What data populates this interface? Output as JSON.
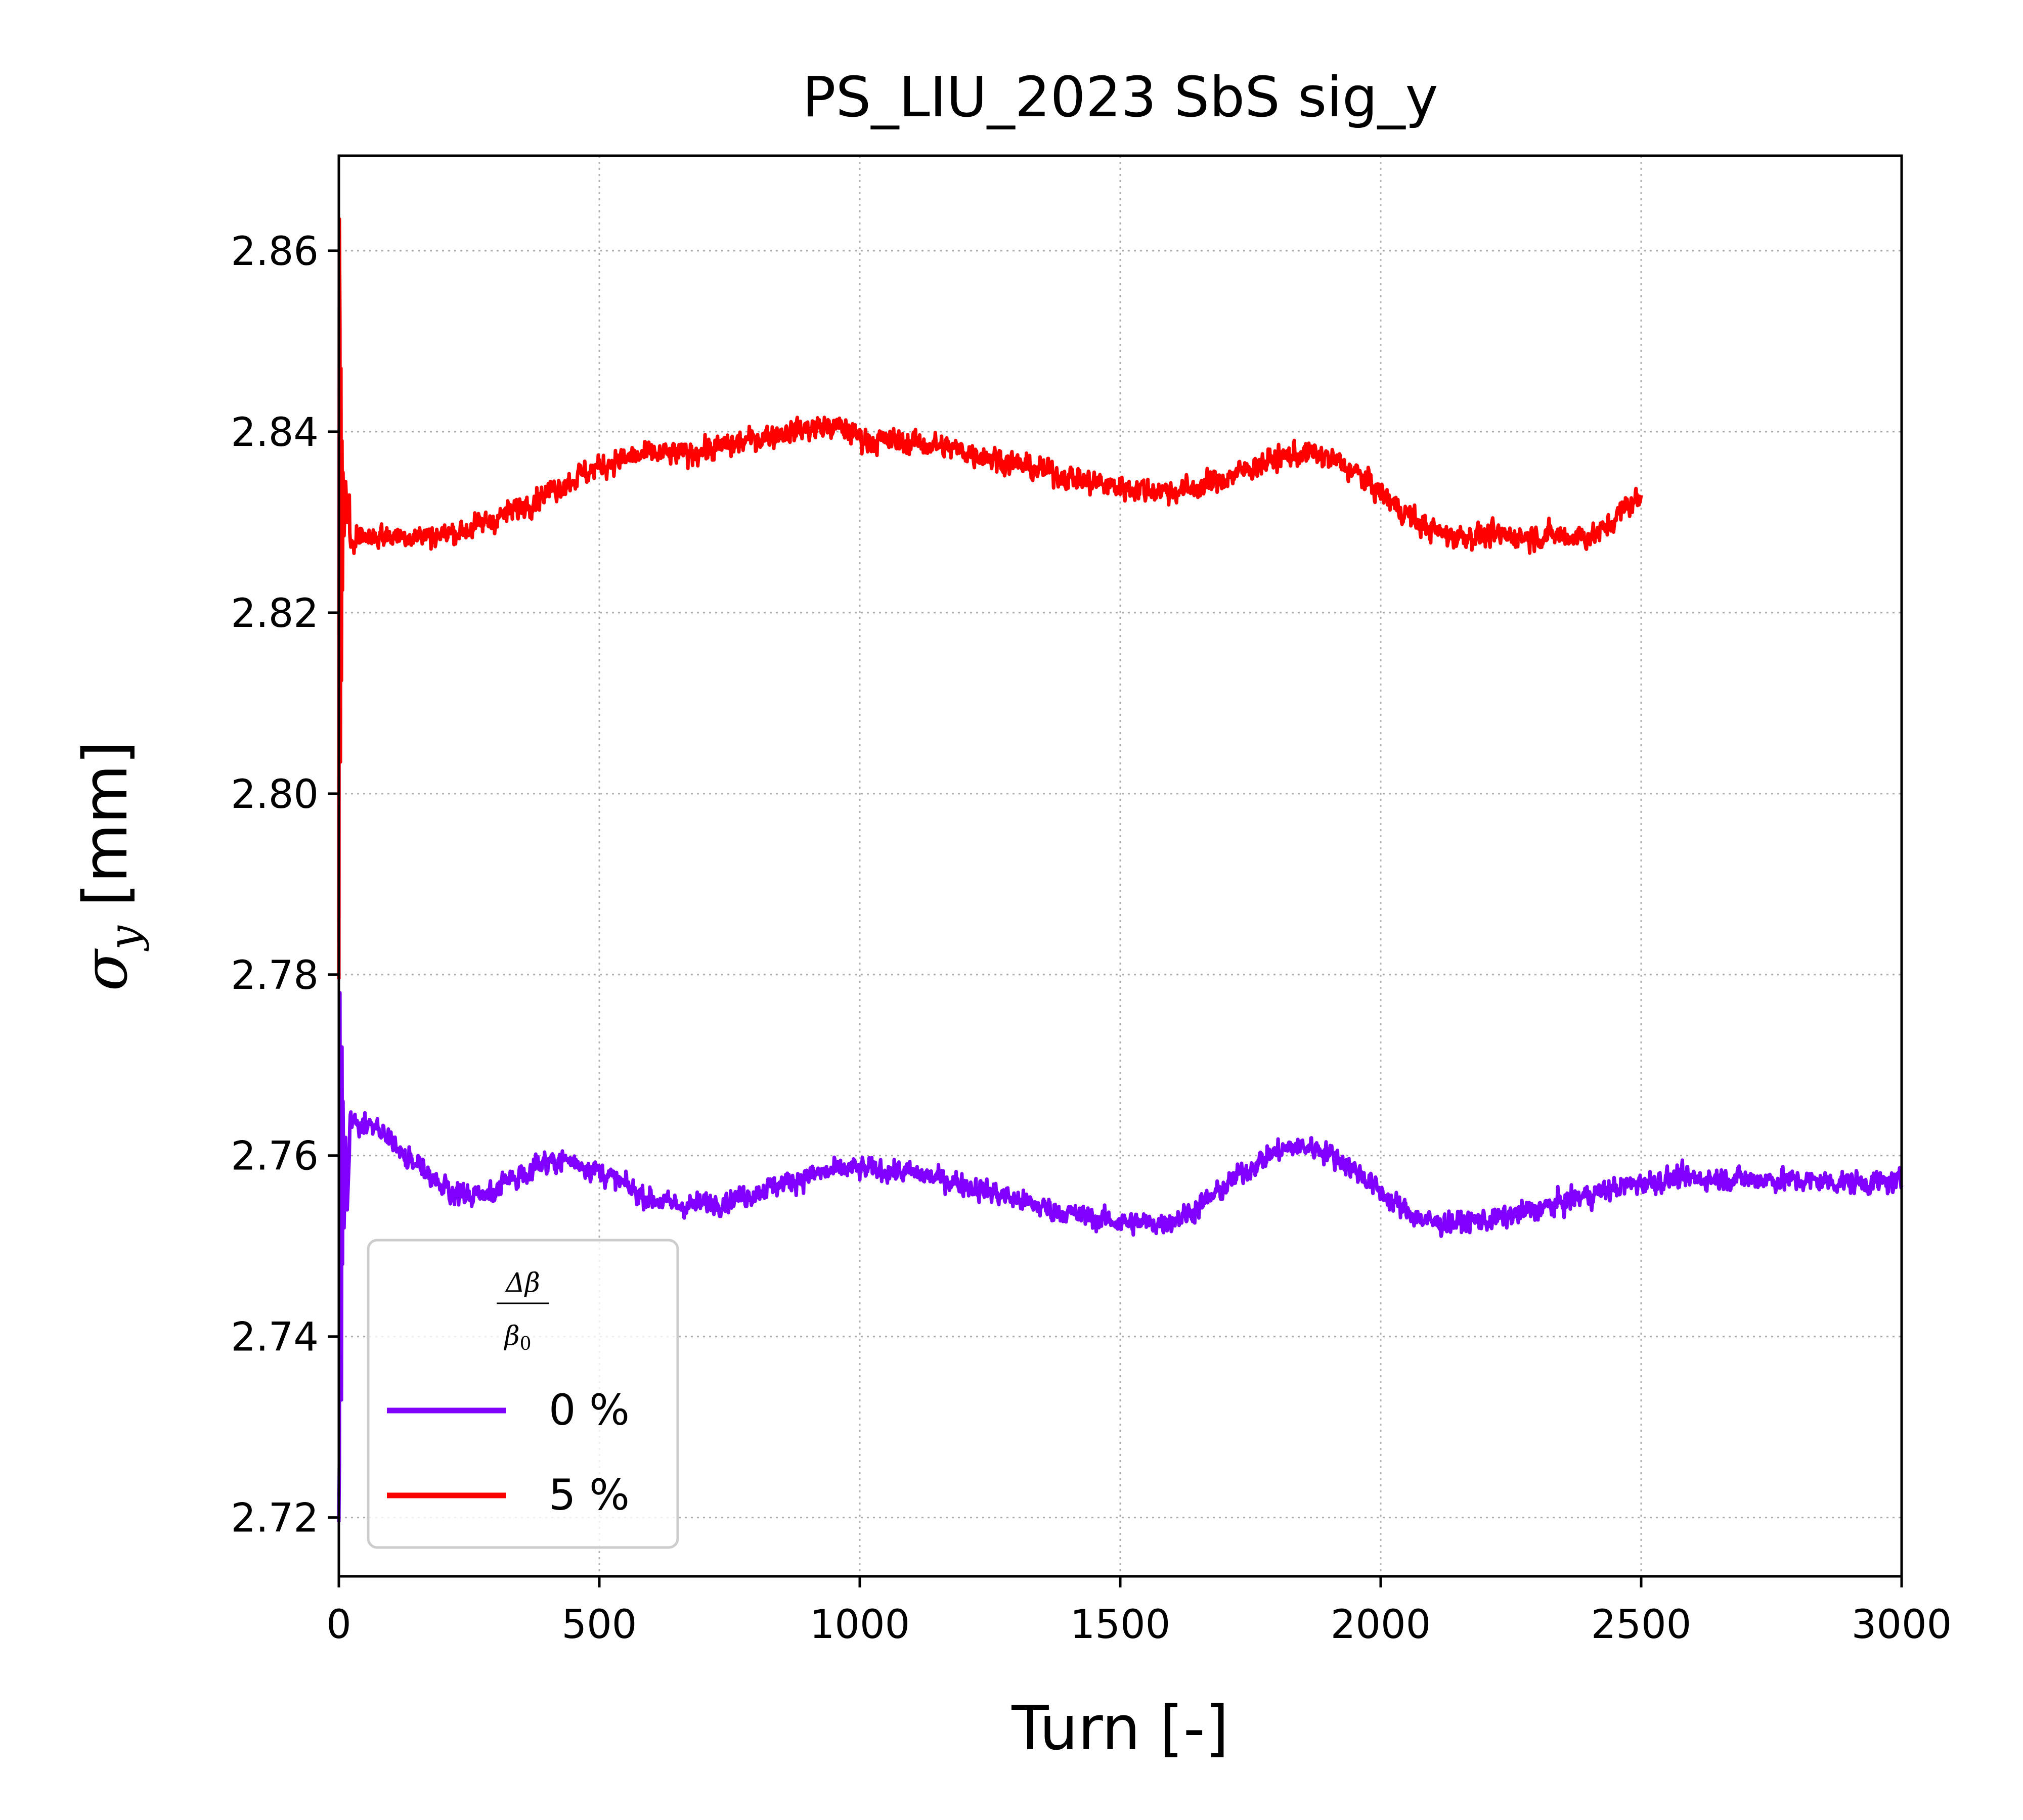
{
  "chart_data": {
    "type": "line",
    "title": "PS_LIU_2023 SbS sig_y",
    "xlabel": "Turn [-]",
    "ylabel": {
      "symbol": "σ",
      "subscript": "y",
      "unit": " [mm]"
    },
    "xlim": [
      0,
      3000
    ],
    "ylim": [
      2.7135,
      2.8705
    ],
    "xticks": [
      0,
      500,
      1000,
      1500,
      2000,
      2500,
      3000
    ],
    "yticks": [
      2.72,
      2.74,
      2.76,
      2.78,
      2.8,
      2.82,
      2.84,
      2.86
    ],
    "ytick_labels": [
      "2.72",
      "2.74",
      "2.76",
      "2.78",
      "2.80",
      "2.82",
      "2.84",
      "2.86"
    ],
    "grid": true,
    "legend": {
      "placement": "lower-left",
      "title_numerator": "Δβ",
      "title_denominator": "β",
      "title_denominator_sub": "0"
    },
    "series": [
      {
        "name": "0 %",
        "color": "#7f00ff",
        "x_range": [
          0,
          3000
        ],
        "mean": 2.7565,
        "noise_amplitude": 0.0025,
        "initial_transient": [
          [
            0,
            2.7195
          ],
          [
            1,
            2.726
          ],
          [
            2,
            2.778
          ],
          [
            3,
            2.741
          ],
          [
            4,
            2.766
          ],
          [
            5,
            2.733
          ],
          [
            6,
            2.772
          ],
          [
            7,
            2.748
          ],
          [
            8,
            2.766
          ],
          [
            10,
            2.752
          ],
          [
            13,
            2.762
          ],
          [
            16,
            2.754
          ],
          [
            20,
            2.76
          ]
        ],
        "features": [
          [
            10,
            2.764
          ],
          [
            255,
            2.7555
          ],
          [
            420,
            2.7595
          ],
          [
            660,
            2.7545
          ],
          [
            1000,
            2.7585
          ],
          [
            1560,
            2.7525
          ],
          [
            1850,
            2.761
          ],
          [
            2120,
            2.7525
          ],
          [
            2600,
            2.7575
          ],
          [
            3000,
            2.757
          ]
        ]
      },
      {
        "name": "5 %",
        "color": "#ff0000",
        "x_range": [
          0,
          2500
        ],
        "mean": 2.8325,
        "noise_amplitude": 0.0027,
        "initial_transient": [
          [
            0,
            2.7795
          ],
          [
            1,
            2.8635
          ],
          [
            2,
            2.852
          ],
          [
            3,
            2.8035
          ],
          [
            4,
            2.847
          ],
          [
            5,
            2.8125
          ],
          [
            6,
            2.839
          ],
          [
            7,
            2.8225
          ],
          [
            8,
            2.8355
          ],
          [
            10,
            2.8285
          ],
          [
            13,
            2.8345
          ],
          [
            16,
            2.83
          ],
          [
            20,
            2.833
          ]
        ],
        "features": [
          [
            160,
            2.8285
          ],
          [
            620,
            2.8375
          ],
          [
            950,
            2.8405
          ],
          [
            1030,
            2.839
          ],
          [
            1600,
            2.8335
          ],
          [
            1860,
            2.8375
          ],
          [
            2150,
            2.8285
          ],
          [
            2400,
            2.8285
          ],
          [
            2500,
            2.8325
          ]
        ]
      }
    ]
  }
}
